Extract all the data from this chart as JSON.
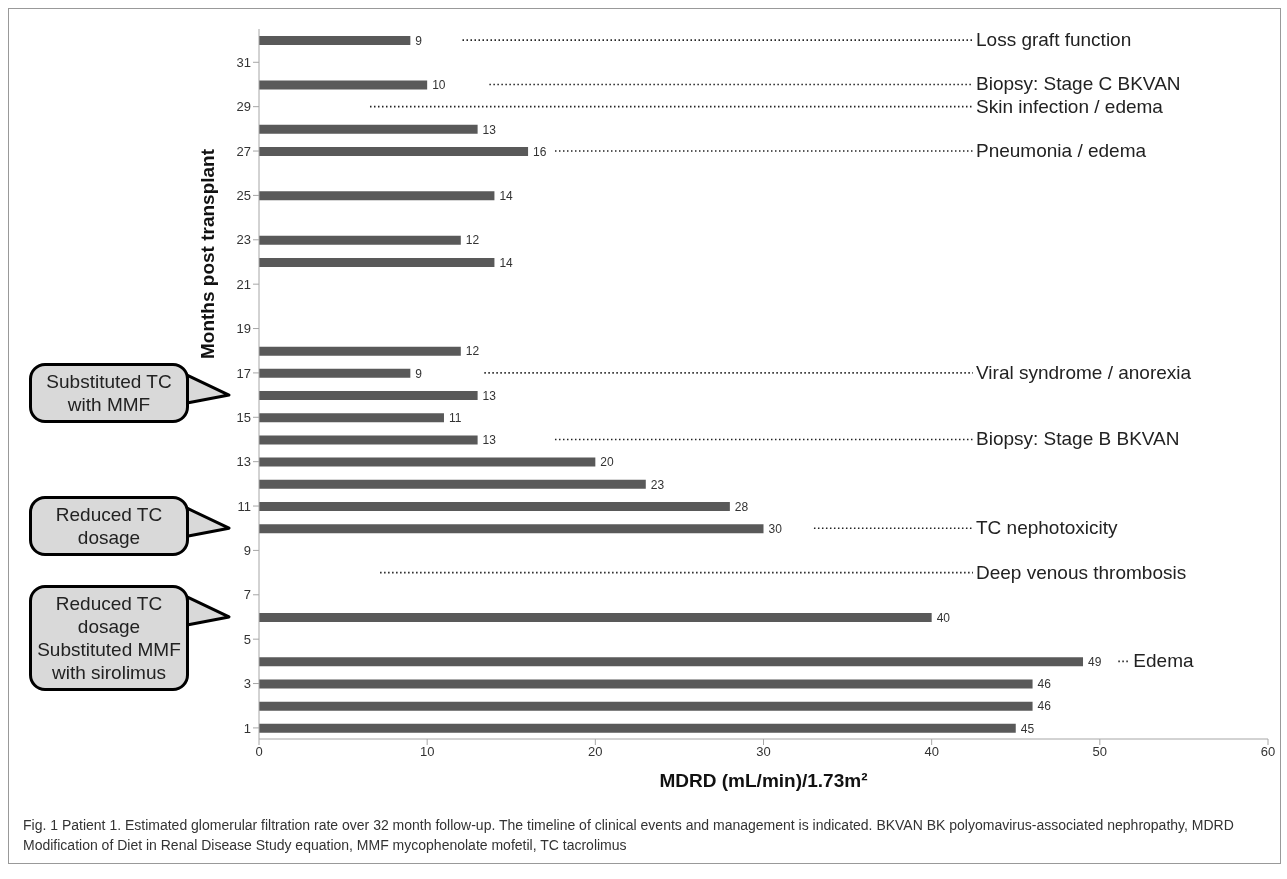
{
  "chart_data": {
    "type": "bar",
    "orientation": "horizontal",
    "xlabel": "MDRD (mL/min)/1.73m²",
    "ylabel": "Months post transplant",
    "x": [
      1,
      2,
      3,
      4,
      6,
      10,
      11,
      12,
      13,
      14,
      15,
      16,
      17,
      18,
      22,
      23,
      25,
      27,
      28,
      30,
      32
    ],
    "values": [
      45,
      46,
      46,
      49,
      40,
      30,
      28,
      23,
      20,
      13,
      11,
      13,
      9,
      12,
      14,
      12,
      14,
      16,
      13,
      10,
      9
    ],
    "color": "#595959",
    "data_labels": true,
    "xlim": [
      0,
      60
    ],
    "xticks": [
      0,
      10,
      20,
      30,
      40,
      50,
      60
    ],
    "ylim": [
      0.5,
      32.5
    ],
    "yticks": [
      1,
      3,
      5,
      7,
      9,
      11,
      13,
      15,
      17,
      19,
      21,
      23,
      25,
      27,
      29,
      31
    ],
    "annotations": [
      "Loss graft function",
      "Biopsy: Stage C BKVAN",
      "Skin infection / edema",
      "Pneumonia / edema",
      "Viral syndrome / anorexia",
      "Biopsy: Stage B BKVAN",
      "TC nephotoxicity",
      "Deep venous thrombosis",
      "Edema",
      "Substituted TC with MMF",
      "Reduced TC dosage",
      "Reduced TC dosage Substituted MMF with sirolimus",
      "Fig. 1 Patient 1. Estimated glomerular filtration rate over 32 month follow-up. The timeline of clinical events and management is indicated. BKVAN BK polyomavirus-associated nephropathy, MDRD Modification of Diet in Renal Disease Study equation, MMF mycophenolate mofetil, TC tacrolimus"
    ]
  }
}
